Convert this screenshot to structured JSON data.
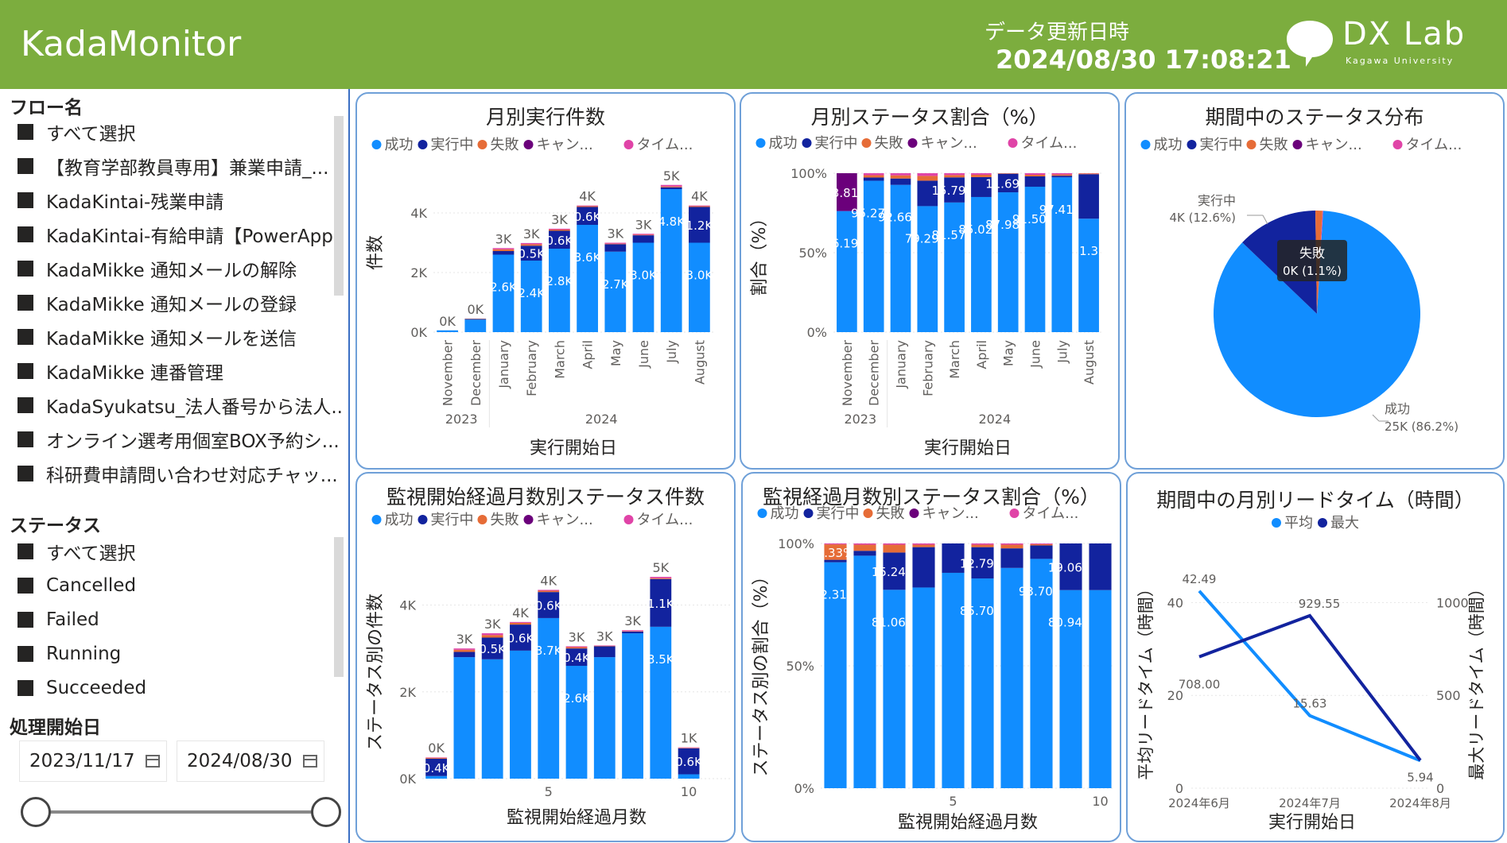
{
  "header": {
    "title": "KadaMonitor",
    "update_label": "データ更新日時",
    "update_time": "2024/08/30 17:08:21",
    "logo_text": "DX Lab",
    "logo_sub": "Kagawa University"
  },
  "colors": {
    "success": "#118dff",
    "running": "#12239e",
    "failed": "#e66c37",
    "cancelled": "#6b007b",
    "timeout": "#e044a7",
    "header": "#7cad3e",
    "avg": "#118dff",
    "max": "#12239e"
  },
  "legend_status": [
    "成功",
    "実行中",
    "失敗",
    "キャン...",
    "タイム..."
  ],
  "sidebar": {
    "flow_title": "フロー名",
    "flows": [
      "すべて選択",
      "【教育学部教員専用】兼業申請_...",
      "KadaKintai-残業申請",
      "KadaKintai-有給申請【PowerApps...",
      "KadaMikke 通知メールの解除",
      "KadaMikke 通知メールの登録",
      "KadaMikke 通知メールを送信",
      "KadaMikke 連番管理",
      "KadaSyukatsu_法人番号から法人...",
      "オンライン選考用個室BOX予約シ...",
      "科研費申請問い合わせ対応チャッ..."
    ],
    "status_title": "ステータス",
    "statuses": [
      "すべて選択",
      "Cancelled",
      "Failed",
      "Running",
      "Succeeded"
    ],
    "date_title": "処理開始日",
    "date_from": "2023/11/17",
    "date_to": "2024/08/30"
  },
  "chart_data": [
    {
      "type": "bar",
      "stacked": true,
      "title": "月別実行件数",
      "xlabel": "実行開始日",
      "ylabel": "件数",
      "categories": [
        "November",
        "December",
        "January",
        "February",
        "March",
        "April",
        "May",
        "June",
        "July",
        "August"
      ],
      "year_labels": [
        "2023",
        "2024"
      ],
      "yticks": [
        "0K",
        "2K",
        "4K"
      ],
      "ylim": [
        0,
        4800
      ],
      "totals": [
        "0K",
        "0K",
        "3K",
        "3K",
        "3K",
        "4K",
        "3K",
        "3K",
        "5K",
        "4K"
      ],
      "series": [
        {
          "name": "成功",
          "values": [
            60,
            420,
            2600,
            2400,
            2800,
            3600,
            2700,
            3000,
            4800,
            3000
          ],
          "labels": [
            "",
            "",
            "2.6K",
            "2.4K",
            "2.8K",
            "3.6K",
            "2.7K",
            "3.0K",
            "4.8K",
            "3.0K"
          ]
        },
        {
          "name": "実行中",
          "values": [
            0,
            20,
            120,
            500,
            600,
            600,
            250,
            250,
            60,
            1200
          ],
          "labels": [
            "",
            "",
            "",
            "0.5K",
            "0.6K",
            "0.6K",
            "",
            "",
            "",
            "1.2K"
          ]
        },
        {
          "name": "失敗",
          "values": [
            0,
            10,
            60,
            50,
            40,
            30,
            20,
            20,
            30,
            30
          ],
          "labels": []
        },
        {
          "name": "キャン...",
          "values": [
            0,
            0,
            0,
            0,
            0,
            0,
            0,
            0,
            0,
            0
          ],
          "labels": []
        },
        {
          "name": "タイム...",
          "values": [
            0,
            0,
            40,
            40,
            30,
            20,
            30,
            30,
            50,
            20
          ],
          "labels": []
        }
      ]
    },
    {
      "type": "bar",
      "stacked": true,
      "percent": true,
      "title": "月別ステータス割合（%）",
      "xlabel": "実行開始日",
      "ylabel": "割合（%）",
      "categories": [
        "November",
        "December",
        "January",
        "February",
        "March",
        "April",
        "May",
        "June",
        "July",
        "August"
      ],
      "year_labels": [
        "2023",
        "2024"
      ],
      "yticks": [
        "0%",
        "50%",
        "100%"
      ],
      "series": [
        {
          "name": "成功",
          "values": [
            76.19,
            95.27,
            92.66,
            79.29,
            81.57,
            85.02,
            87.98,
            91.5,
            97.41,
            71.38
          ],
          "labels": [
            "76.19%",
            "95.27%",
            "92.66%",
            "79.29%",
            "81.57%",
            "85.02%",
            "87.98%",
            "91.50%",
            "97.41%",
            "71.38"
          ]
        },
        {
          "name": "実行中",
          "values": [
            0,
            2.0,
            4.0,
            16.0,
            15.79,
            12.5,
            11.69,
            6.5,
            1.0,
            28.0
          ],
          "labels": [
            "",
            "",
            "",
            "",
            "15.79%",
            "",
            "11.69%",
            "",
            "",
            ""
          ]
        },
        {
          "name": "失敗",
          "values": [
            0,
            1.5,
            2.0,
            3.0,
            1.5,
            1.5,
            0.3,
            1.0,
            0.8,
            0.5
          ],
          "labels": []
        },
        {
          "name": "キャン...",
          "values": [
            23.81,
            0,
            0,
            0,
            0,
            0,
            0,
            0,
            0,
            0
          ],
          "labels": [
            "23.81%"
          ]
        },
        {
          "name": "タイム...",
          "values": [
            0,
            1.23,
            1.34,
            1.71,
            1.14,
            0.98,
            0.03,
            1.0,
            0.79,
            0.12
          ],
          "labels": []
        }
      ]
    },
    {
      "type": "pie",
      "title": "期間中のステータス分布",
      "slices": [
        {
          "name": "成功",
          "value": 86.2,
          "label": "成功",
          "detail": "25K (86.2%)"
        },
        {
          "name": "実行中",
          "value": 12.6,
          "label": "実行中",
          "detail": "4K (12.6%)"
        },
        {
          "name": "失敗",
          "value": 1.1,
          "label": "失敗",
          "detail": "0K (1.1%)"
        },
        {
          "name": "タイム...",
          "value": 0.1,
          "label": "",
          "detail": ""
        }
      ],
      "tooltip": {
        "title": "失敗",
        "value": "0K (1.1%)"
      }
    },
    {
      "type": "bar",
      "stacked": true,
      "title": "監視開始経過月数別ステータス件数",
      "xlabel": "監視開始経過月数",
      "ylabel": "ステータス別の件数",
      "categories": [
        1,
        2,
        3,
        4,
        5,
        6,
        7,
        8,
        9,
        10,
        11
      ],
      "xticks": [
        "5",
        "10"
      ],
      "yticks": [
        "0K",
        "2K",
        "4K"
      ],
      "ylim": [
        0,
        5200
      ],
      "totals": [
        "0K",
        "3K",
        "3K",
        "4K",
        "4K",
        "3K",
        "3K",
        "3K",
        "5K",
        "1K",
        ""
      ],
      "series": [
        {
          "name": "成功",
          "values": [
            60,
            2800,
            2750,
            2950,
            3700,
            2600,
            2800,
            3350,
            3500,
            100,
            0
          ],
          "labels": [
            "",
            "",
            "",
            "",
            "3.7K",
            "2.6K",
            "",
            "",
            "3.5K",
            "",
            ""
          ]
        },
        {
          "name": "実行中",
          "values": [
            400,
            120,
            500,
            600,
            600,
            400,
            250,
            40,
            1100,
            600,
            0
          ],
          "labels": [
            "0.4K",
            "",
            "0.5K",
            "0.6K",
            "0.6K",
            "0.4K",
            "",
            "",
            "1.1K",
            "0.6K",
            ""
          ]
        },
        {
          "name": "失敗",
          "values": [
            20,
            50,
            60,
            40,
            30,
            30,
            10,
            10,
            20,
            10,
            0
          ],
          "labels": []
        },
        {
          "name": "キャン...",
          "values": [
            0,
            0,
            0,
            0,
            0,
            0,
            0,
            0,
            0,
            0,
            0
          ],
          "labels": []
        },
        {
          "name": "タイム...",
          "values": [
            10,
            30,
            40,
            20,
            20,
            20,
            10,
            20,
            30,
            10,
            0
          ],
          "labels": []
        }
      ]
    },
    {
      "type": "bar",
      "stacked": true,
      "percent": true,
      "title": "監視経過月数別ステータス割合（%）",
      "xlabel": "監視開始経過月数",
      "ylabel": "ステータス別の割合（%）",
      "categories": [
        1,
        2,
        3,
        4,
        5,
        6,
        7,
        8,
        9,
        10
      ],
      "xticks": [
        "5",
        "10"
      ],
      "yticks": [
        "0%",
        "50%",
        "100%"
      ],
      "series": [
        {
          "name": "成功",
          "values": [
            92.31,
            95.0,
            81.06,
            82.0,
            88.0,
            85.7,
            90.0,
            93.7,
            80.94,
            80.94
          ],
          "labels": [
            "92.31%",
            "",
            "81.06%",
            "",
            "",
            "85.70%",
            "",
            "93.70%",
            "80.94%",
            ""
          ]
        },
        {
          "name": "実行中",
          "values": [
            1.0,
            2.0,
            15.24,
            16.5,
            12.0,
            12.79,
            8.0,
            5.5,
            19.06,
            19.06
          ],
          "labels": [
            "",
            "",
            "15.24%",
            "",
            "",
            "12.79%",
            "",
            "",
            "19.06%",
            ""
          ]
        },
        {
          "name": "失敗",
          "values": [
            6.33,
            2.5,
            3.2,
            1.0,
            0,
            1.0,
            1.5,
            0.5,
            0,
            0
          ],
          "labels": [
            "6.33%"
          ]
        },
        {
          "name": "キャン...",
          "values": [
            0,
            0,
            0,
            0,
            0,
            0,
            0,
            0,
            0,
            0
          ],
          "labels": []
        },
        {
          "name": "タイム...",
          "values": [
            0.36,
            0.5,
            0.5,
            0.5,
            0,
            0.51,
            0.5,
            0.3,
            0,
            0
          ],
          "labels": []
        }
      ]
    },
    {
      "type": "line",
      "title": "期間中の月別リードタイム（時間）",
      "xlabel": "実行開始日",
      "ylabel_left": "平均リードタイム（時間）",
      "ylabel_right": "最大リードタイム（時間）",
      "categories": [
        "2024年6月",
        "2024年7月",
        "2024年8月"
      ],
      "yticks_left": [
        "0",
        "20",
        "40"
      ],
      "ylim_left": [
        0,
        50
      ],
      "yticks_right": [
        "0",
        "500",
        "1000"
      ],
      "ylim_right": [
        0,
        1250
      ],
      "series": [
        {
          "name": "平均",
          "axis": "left",
          "values": [
            42.49,
            15.63,
            5.94
          ],
          "labels": [
            "42.49",
            "15.63",
            "5.94"
          ]
        },
        {
          "name": "最大",
          "axis": "right",
          "values": [
            708.0,
            929.55,
            150
          ],
          "labels": [
            "708.00",
            "929.55",
            ""
          ]
        }
      ]
    }
  ]
}
